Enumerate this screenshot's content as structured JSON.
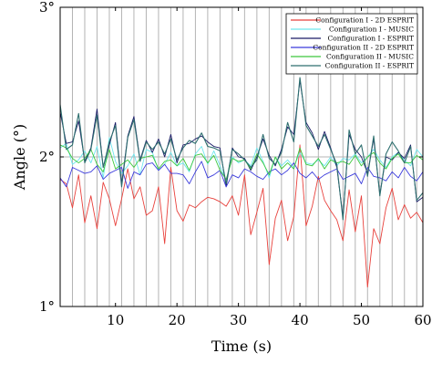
{
  "chart_data": {
    "type": "line",
    "xlabel": "Time (s)",
    "ylabel": "Angle (°)",
    "xlim": [
      1,
      60
    ],
    "ylim": [
      1,
      3
    ],
    "x_ticks": [
      10,
      20,
      30,
      40,
      50,
      60
    ],
    "y_ticks": [
      1,
      2,
      3
    ],
    "y_tick_labels": [
      "1°",
      "2°",
      "3°"
    ],
    "x_gridlines": [
      3,
      5,
      7,
      9,
      11,
      13,
      15,
      17,
      19,
      21,
      23,
      25,
      27,
      29,
      31,
      33,
      35,
      37,
      39,
      41,
      43,
      45,
      47,
      49,
      51,
      53,
      55,
      57,
      59
    ],
    "y_gridlines": [
      2.0
    ],
    "grid": true,
    "legend_position": "top-right",
    "x": [
      1,
      2,
      3,
      4,
      5,
      6,
      7,
      8,
      9,
      10,
      11,
      12,
      13,
      14,
      15,
      16,
      17,
      18,
      19,
      20,
      21,
      22,
      23,
      24,
      25,
      26,
      27,
      28,
      29,
      30,
      31,
      32,
      33,
      34,
      35,
      36,
      37,
      38,
      39,
      40,
      41,
      42,
      43,
      44,
      45,
      46,
      47,
      48,
      49,
      50,
      51,
      52,
      53,
      54,
      55,
      56,
      57,
      58,
      59,
      60
    ],
    "series": [
      {
        "name": "Configuration I - 2D ESPRIT",
        "color": "#e8413c",
        "width": 0.9,
        "values": [
          1.85,
          1.82,
          1.66,
          1.88,
          1.56,
          1.74,
          1.52,
          1.83,
          1.72,
          1.54,
          1.72,
          1.92,
          1.72,
          1.8,
          1.61,
          1.64,
          1.8,
          1.42,
          1.93,
          1.64,
          1.57,
          1.68,
          1.66,
          1.7,
          1.73,
          1.72,
          1.7,
          1.67,
          1.74,
          1.61,
          1.88,
          1.48,
          1.63,
          1.79,
          1.28,
          1.59,
          1.71,
          1.44,
          1.6,
          2.08,
          1.54,
          1.67,
          1.87,
          1.71,
          1.64,
          1.58,
          1.44,
          1.78,
          1.5,
          1.74,
          1.13,
          1.52,
          1.42,
          1.66,
          1.79,
          1.58,
          1.68,
          1.59,
          1.63,
          1.56
        ]
      },
      {
        "name": "Configuration I - MUSIC",
        "color": "#6ee6ee",
        "width": 0.9,
        "values": [
          2.06,
          2.09,
          1.95,
          1.98,
          2.04,
          1.96,
          2.07,
          1.86,
          2.13,
          1.97,
          1.89,
          1.94,
          2.02,
          1.88,
          2.05,
          2.03,
          1.91,
          1.95,
          2.03,
          1.94,
          1.96,
          1.9,
          2.02,
          2.07,
          1.95,
          2.04,
          1.94,
          1.84,
          2.0,
          1.96,
          1.98,
          1.94,
          2.06,
          1.97,
          1.86,
          2.0,
          1.94,
          1.98,
          1.93,
          2.03,
          1.96,
          1.95,
          1.98,
          1.94,
          2.0,
          1.94,
          1.99,
          1.98,
          2.02,
          1.96,
          2.0,
          2.05,
          1.98,
          1.93,
          2.0,
          2.03,
          1.98,
          1.94,
          2.05,
          2.0
        ]
      },
      {
        "name": "Configuration I - ESPRIT",
        "color": "#1a1a66",
        "width": 0.9,
        "values": [
          2.3,
          2.09,
          2.1,
          2.24,
          1.97,
          2.06,
          2.32,
          1.93,
          2.08,
          2.23,
          1.82,
          2.14,
          2.27,
          1.98,
          2.11,
          2.03,
          2.12,
          2.0,
          2.15,
          1.96,
          2.08,
          2.09,
          2.12,
          2.14,
          2.1,
          2.07,
          2.06,
          1.8,
          2.06,
          2.0,
          1.99,
          1.91,
          2.0,
          2.12,
          2.01,
          1.94,
          2.05,
          2.2,
          2.15,
          2.51,
          2.23,
          2.16,
          2.05,
          2.17,
          2.06,
          1.93,
          1.6,
          2.15,
          2.05,
          2.0,
          1.89,
          2.12,
          1.75,
          2.0,
          1.98,
          2.03,
          1.99,
          2.08,
          1.7,
          1.73
        ]
      },
      {
        "name": "Configuration II - 2D ESPRIT",
        "color": "#3b3bdc",
        "width": 0.9,
        "values": [
          1.86,
          1.8,
          1.93,
          1.91,
          1.89,
          1.9,
          1.94,
          1.85,
          1.89,
          1.91,
          1.93,
          1.79,
          1.9,
          1.88,
          1.95,
          1.96,
          1.91,
          1.95,
          1.89,
          1.89,
          1.88,
          1.82,
          1.9,
          1.97,
          1.86,
          1.88,
          1.91,
          1.8,
          1.88,
          1.86,
          1.92,
          1.9,
          1.87,
          1.85,
          1.9,
          1.92,
          1.88,
          1.91,
          1.96,
          1.89,
          1.86,
          1.9,
          1.85,
          1.88,
          1.9,
          1.92,
          1.85,
          1.87,
          1.89,
          1.82,
          1.93,
          1.87,
          1.86,
          1.84,
          1.9,
          1.86,
          1.93,
          1.87,
          1.84,
          1.9
        ]
      },
      {
        "name": "Configuration II - MUSIC",
        "color": "#3cc83c",
        "width": 0.9,
        "values": [
          2.08,
          2.06,
          1.99,
          1.96,
          1.99,
          2.05,
          1.95,
          1.9,
          2.05,
          1.92,
          1.95,
          1.98,
          1.93,
          1.99,
          2.0,
          2.01,
          1.92,
          1.97,
          1.98,
          1.94,
          1.99,
          1.91,
          2.01,
          2.02,
          1.96,
          2.01,
          1.91,
          1.85,
          1.99,
          1.97,
          1.98,
          1.92,
          2.02,
          1.96,
          1.88,
          2.0,
          1.92,
          1.96,
          1.92,
          2.06,
          1.95,
          1.94,
          1.99,
          1.92,
          1.98,
          1.96,
          1.97,
          1.95,
          2.01,
          1.94,
          2.0,
          2.03,
          1.96,
          1.92,
          1.99,
          2.02,
          1.96,
          1.96,
          2.01,
          1.98
        ]
      },
      {
        "name": "Configuration II - ESPRIT",
        "color": "#2e6f6f",
        "width": 1.1,
        "values": [
          2.35,
          2.05,
          2.08,
          2.29,
          1.96,
          2.05,
          2.28,
          1.93,
          2.1,
          2.21,
          1.8,
          2.13,
          2.25,
          1.97,
          2.1,
          2.05,
          2.1,
          2.02,
          2.12,
          1.98,
          2.06,
          2.11,
          2.09,
          2.16,
          2.07,
          2.06,
          2.04,
          1.82,
          2.05,
          2.02,
          1.98,
          1.93,
          1.98,
          2.15,
          1.99,
          1.95,
          2.03,
          2.23,
          2.1,
          2.53,
          2.21,
          2.14,
          2.07,
          2.15,
          2.05,
          1.95,
          1.58,
          2.18,
          2.02,
          2.08,
          1.87,
          2.14,
          1.74,
          2.02,
          2.1,
          2.04,
          1.96,
          2.07,
          1.71,
          1.76
        ]
      }
    ]
  }
}
